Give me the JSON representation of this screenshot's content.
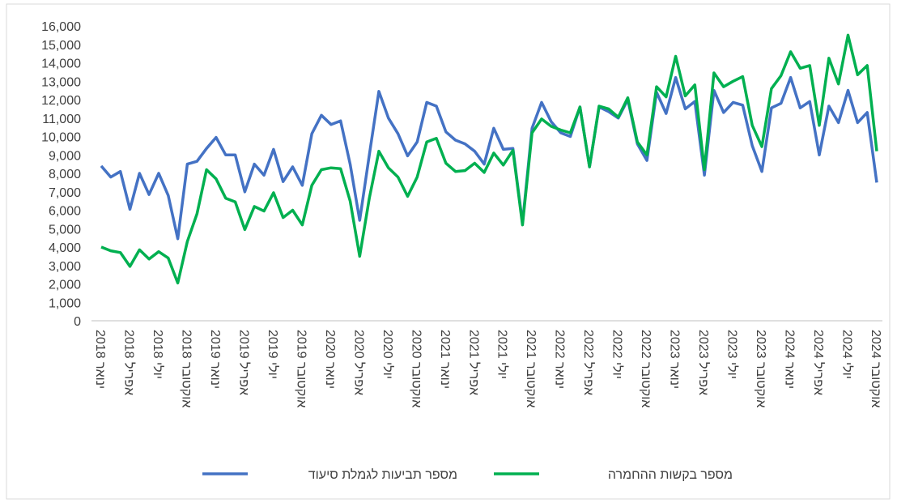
{
  "chart_data": {
    "type": "line",
    "categories": [
      "ינואר 2018",
      null,
      null,
      "אפריל 2018",
      null,
      null,
      "יולי 2018",
      null,
      null,
      "אוקטובר 2018",
      null,
      null,
      "ינואר 2019",
      null,
      null,
      "אפריל 2019",
      null,
      null,
      "יולי 2019",
      null,
      null,
      "אוקטובר 2019",
      null,
      null,
      "ינואר 2020",
      null,
      null,
      "אפריל 2020",
      null,
      null,
      "יולי 2020",
      null,
      null,
      "אוקטובר 2020",
      null,
      null,
      "ינואר 2021",
      null,
      null,
      "אפריל 2021",
      null,
      null,
      "יולי 2021",
      null,
      null,
      "אוקטובר 2021",
      null,
      null,
      "ינואר 2022",
      null,
      null,
      "אפריל 2022",
      null,
      null,
      "יולי 2022",
      null,
      null,
      "אוקטובר 2022",
      null,
      null,
      "ינואר 2023",
      null,
      null,
      "אפריל 2023",
      null,
      null,
      "יולי 2023",
      null,
      null,
      "אוקטובר 2023",
      null,
      null,
      "ינואר 2024",
      null,
      null,
      "אפריל 2024",
      null,
      null,
      "יולי 2024",
      null,
      null,
      "אוקטובר 2024"
    ],
    "series": [
      {
        "name": "מספר תביעות לגמלת סיעוד",
        "color": "#4472c4",
        "values": [
          8400,
          7800,
          8100,
          6050,
          8000,
          6850,
          8000,
          6800,
          4450,
          8500,
          8650,
          9350,
          9950,
          9000,
          9000,
          7000,
          8500,
          7900,
          9300,
          7550,
          8350,
          7350,
          10150,
          11150,
          10650,
          10850,
          8500,
          5450,
          9000,
          12450,
          11000,
          10150,
          8950,
          9700,
          11850,
          11650,
          10250,
          9800,
          9600,
          9200,
          8500,
          10450,
          9300,
          9350,
          5300,
          10450,
          11850,
          10800,
          10200,
          10000,
          11600,
          8350,
          11600,
          11350,
          11000,
          12000,
          9600,
          8700,
          12400,
          11250,
          13200,
          11500,
          11900,
          7900,
          12500,
          11300,
          11850,
          11700,
          9500,
          8100,
          11550,
          11800,
          13200,
          11550,
          11900,
          9000,
          11650,
          10750,
          12500,
          10750,
          11300,
          7500
        ]
      },
      {
        "name": "מספר בקשות ההחמרה",
        "color": "#00b050",
        "values": [
          4000,
          3800,
          3700,
          2950,
          3850,
          3350,
          3750,
          3400,
          2050,
          4300,
          5800,
          8200,
          7700,
          6650,
          6450,
          4950,
          6200,
          5950,
          6950,
          5600,
          6000,
          5200,
          7350,
          8200,
          8300,
          8250,
          6500,
          3500,
          6650,
          9200,
          8300,
          7800,
          6750,
          7800,
          9700,
          9900,
          8550,
          8100,
          8150,
          8550,
          8050,
          9100,
          8450,
          9250,
          5200,
          10200,
          10950,
          10550,
          10350,
          10200,
          11600,
          8350,
          11650,
          11500,
          11050,
          12100,
          9700,
          9000,
          12700,
          12150,
          14350,
          12200,
          12800,
          8200,
          13450,
          12700,
          13000,
          13250,
          10600,
          9450,
          12600,
          13300,
          14600,
          13700,
          13850,
          10600,
          14250,
          12850,
          15500,
          13350,
          13850,
          9200
        ]
      }
    ],
    "ylim": [
      0,
      16000
    ],
    "yticks": [
      0,
      {
        "value": 1000,
        "label": "1,000"
      },
      {
        "value": 2000,
        "label": "2,000"
      },
      {
        "value": 3000,
        "label": "3,000"
      },
      {
        "value": 4000,
        "label": "4,000"
      },
      {
        "value": 5000,
        "label": "5,000"
      },
      {
        "value": 6000,
        "label": "6,000"
      },
      {
        "value": 7000,
        "label": "7,000"
      },
      {
        "value": 8000,
        "label": "8,000"
      },
      {
        "value": 9000,
        "label": "9,000"
      },
      {
        "value": 10000,
        "label": "10,000"
      },
      {
        "value": 11000,
        "label": "11,000"
      },
      {
        "value": 12000,
        "label": "12,000"
      },
      {
        "value": 13000,
        "label": "13,000"
      },
      {
        "value": 14000,
        "label": "14,000"
      },
      {
        "value": 15000,
        "label": "15,000"
      },
      {
        "value": 16000,
        "label": "16,000"
      }
    ],
    "grid": false
  }
}
